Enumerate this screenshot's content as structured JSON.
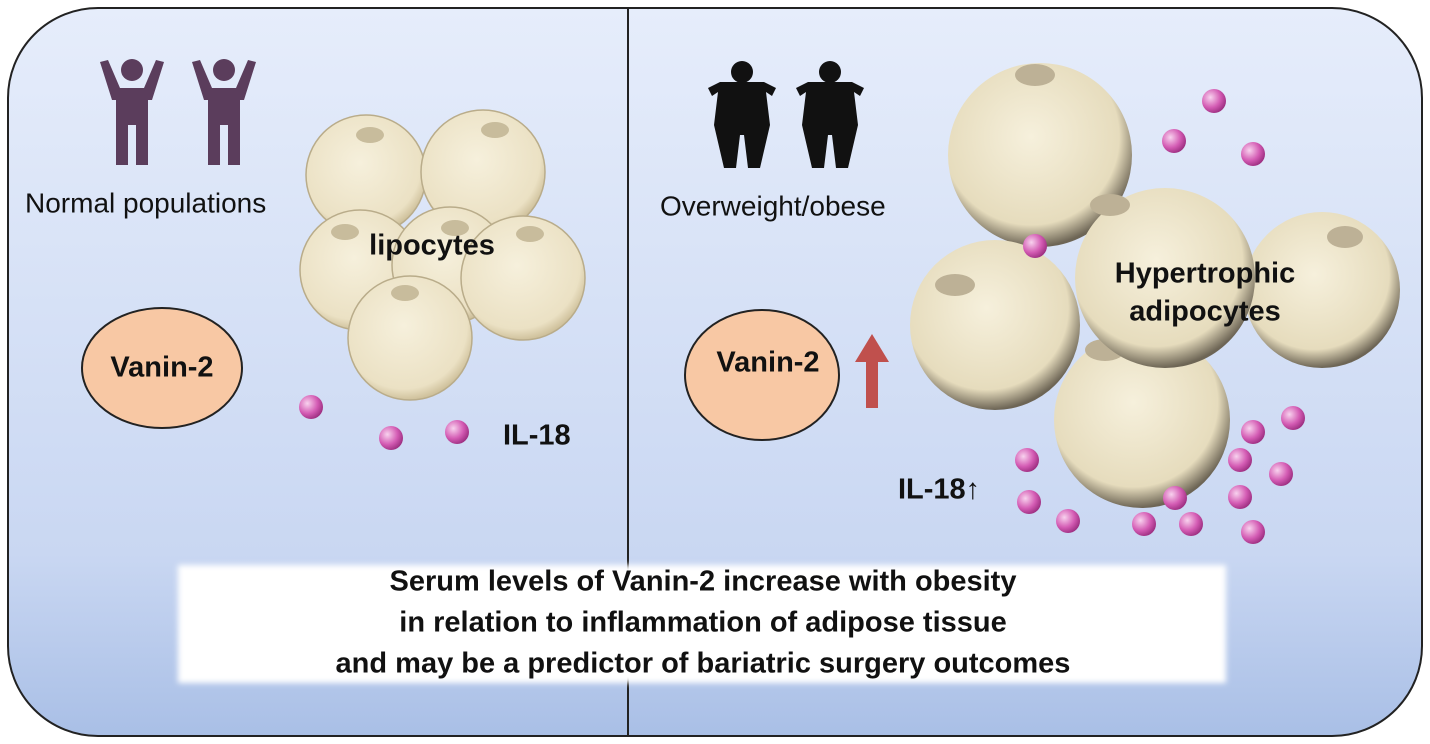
{
  "left_panel": {
    "group_label": "Normal populations",
    "cell_label": "lipocytes",
    "marker": "Vanin-2",
    "cytokine": "IL-18"
  },
  "right_panel": {
    "group_label": "Overweight/obese",
    "cell_label": [
      "Hypertrophic",
      "adipocytes"
    ],
    "marker": "Vanin-2",
    "cytokine": "IL-18↑"
  },
  "caption": [
    "Serum levels of Vanin-2 increase with obesity",
    "in relation to inflammation of adipose tissue",
    "and may be a predictor of bariatric surgery outcomes"
  ]
}
